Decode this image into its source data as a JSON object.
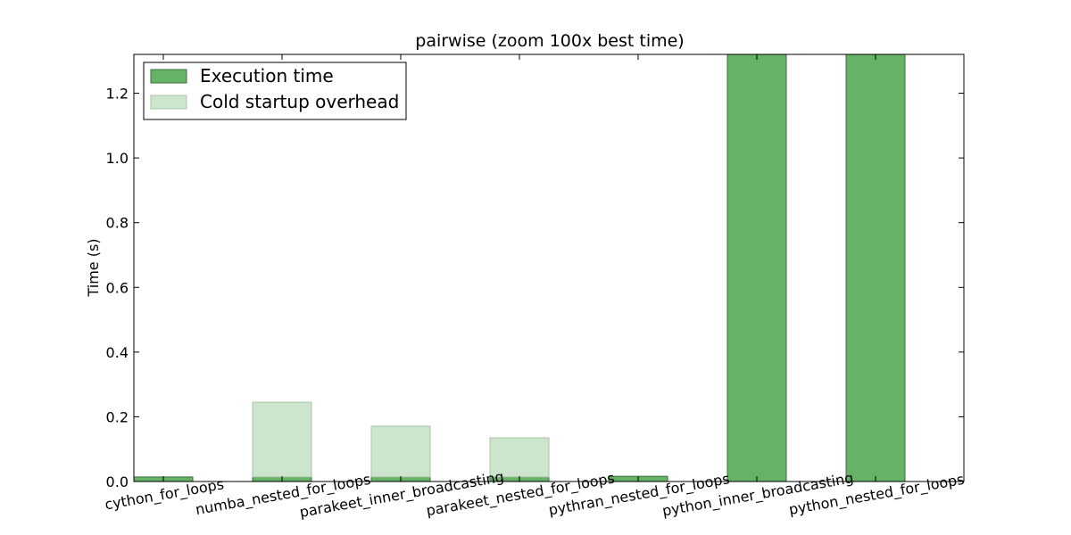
{
  "chart_data": {
    "type": "bar",
    "title": "pairwise (zoom 100x best time)",
    "xlabel": "",
    "ylabel": "Time (s)",
    "ylim": [
      0,
      1.32
    ],
    "yticks": [
      0.0,
      0.2,
      0.4,
      0.6,
      0.8,
      1.0,
      1.2
    ],
    "ytick_labels": [
      "0.0",
      "0.2",
      "0.4",
      "0.6",
      "0.8",
      "1.0",
      "1.2"
    ],
    "categories": [
      "cython_for_loops",
      "numba_nested_for_loops",
      "parakeet_inner_broadcasting",
      "parakeet_nested_for_loops",
      "pythran_nested_for_loops",
      "python_inner_broadcasting",
      "python_nested_for_loops"
    ],
    "stacked": true,
    "series": [
      {
        "name": "Execution time",
        "color": "#66b266",
        "values": [
          0.014,
          0.014,
          0.014,
          0.014,
          0.016,
          1.32,
          1.32
        ]
      },
      {
        "name": "Cold startup overhead",
        "color": "#cde5cd",
        "values": [
          0.0,
          0.231,
          0.157,
          0.121,
          0.0,
          0.0,
          0.0
        ]
      }
    ],
    "legend_position": "top-left",
    "grid": false
  }
}
